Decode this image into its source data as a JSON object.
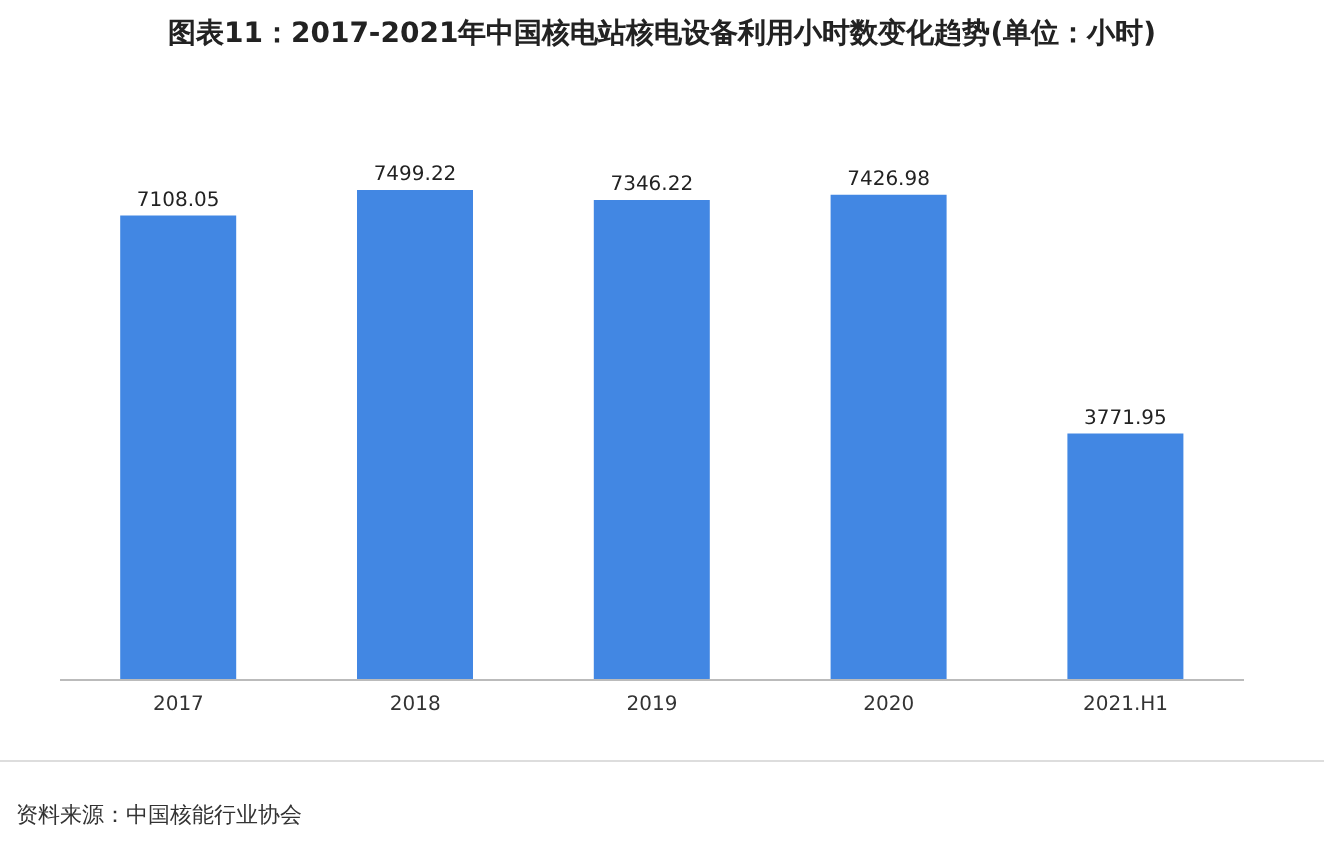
{
  "chart_data": {
    "type": "bar",
    "title": "图表11：2017-2021年中国核电站核电设备利用小时数变化趋势(单位：小时)",
    "categories": [
      "2017",
      "2018",
      "2019",
      "2020",
      "2021.H1"
    ],
    "values": [
      7108.05,
      7499.22,
      7346.22,
      7426.98,
      3771.95
    ],
    "color": "#4287e3",
    "data_labels": true,
    "grid": false,
    "legend": false,
    "annotations": [
      "资料来源：中国核能行业协会"
    ]
  }
}
